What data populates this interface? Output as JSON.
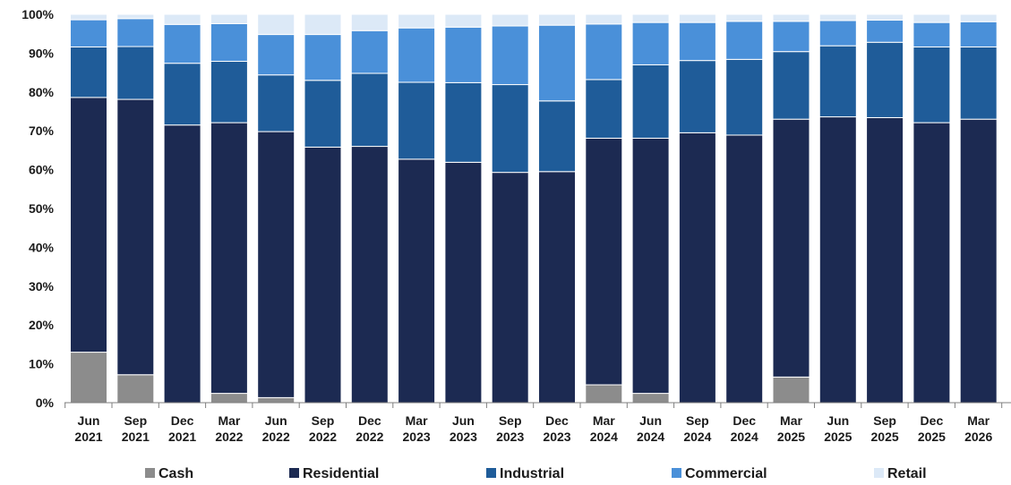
{
  "chart_data": {
    "type": "bar",
    "stacked": true,
    "title": "",
    "xlabel": "",
    "ylabel": "",
    "ylim": [
      0,
      100
    ],
    "y_ticks": [
      "0%",
      "10%",
      "20%",
      "30%",
      "40%",
      "50%",
      "60%",
      "70%",
      "80%",
      "90%",
      "100%"
    ],
    "legend_position": "bottom",
    "categories": [
      [
        "Jun",
        "2021"
      ],
      [
        "Sep",
        "2021"
      ],
      [
        "Dec",
        "2021"
      ],
      [
        "Mar",
        "2022"
      ],
      [
        "Jun",
        "2022"
      ],
      [
        "Sep",
        "2022"
      ],
      [
        "Dec",
        "2022"
      ],
      [
        "Mar",
        "2023"
      ],
      [
        "Jun",
        "2023"
      ],
      [
        "Sep",
        "2023"
      ],
      [
        "Dec",
        "2023"
      ],
      [
        "Mar",
        "2024"
      ],
      [
        "Jun",
        "2024"
      ],
      [
        "Sep",
        "2024"
      ],
      [
        "Dec",
        "2024"
      ],
      [
        "Mar",
        "2025"
      ],
      [
        "Jun",
        "2025"
      ],
      [
        "Sep",
        "2025"
      ],
      [
        "Dec",
        "2025"
      ],
      [
        "Mar",
        "2026"
      ]
    ],
    "series": [
      {
        "name": "Cash",
        "color": "#8c8c8c",
        "values": [
          13.0,
          7.2,
          0,
          2.4,
          1.3,
          0,
          0,
          0,
          0,
          0,
          0,
          4.6,
          2.4,
          0,
          0,
          6.6,
          0,
          0,
          0,
          0
        ]
      },
      {
        "name": "Residential",
        "color": "#1c2a52",
        "values": [
          65.6,
          70.9,
          71.5,
          69.7,
          68.5,
          65.8,
          66.0,
          62.7,
          61.9,
          59.3,
          59.5,
          63.5,
          65.7,
          69.5,
          68.9,
          66.4,
          73.6,
          73.4,
          72.1,
          73.0
        ]
      },
      {
        "name": "Industrial",
        "color": "#1f5c99",
        "values": [
          13.0,
          13.6,
          15.9,
          15.8,
          14.6,
          17.2,
          18.8,
          19.8,
          20.5,
          22.6,
          18.2,
          15.1,
          18.9,
          18.6,
          19.5,
          17.4,
          18.3,
          19.4,
          19.5,
          18.6
        ]
      },
      {
        "name": "Commercial",
        "color": "#4a90d9",
        "values": [
          7.0,
          7.2,
          10.0,
          9.7,
          10.4,
          11.8,
          11.0,
          14.0,
          14.3,
          15.1,
          19.5,
          14.3,
          10.9,
          9.8,
          9.8,
          7.8,
          6.5,
          5.7,
          6.3,
          6.5
        ]
      },
      {
        "name": "Retail",
        "color": "#dce9f7",
        "values": [
          1.4,
          1.1,
          2.6,
          2.4,
          5.2,
          5.2,
          4.2,
          3.5,
          3.3,
          3.0,
          2.8,
          2.5,
          2.1,
          2.1,
          1.8,
          1.8,
          1.6,
          1.5,
          2.1,
          1.9
        ]
      }
    ]
  }
}
